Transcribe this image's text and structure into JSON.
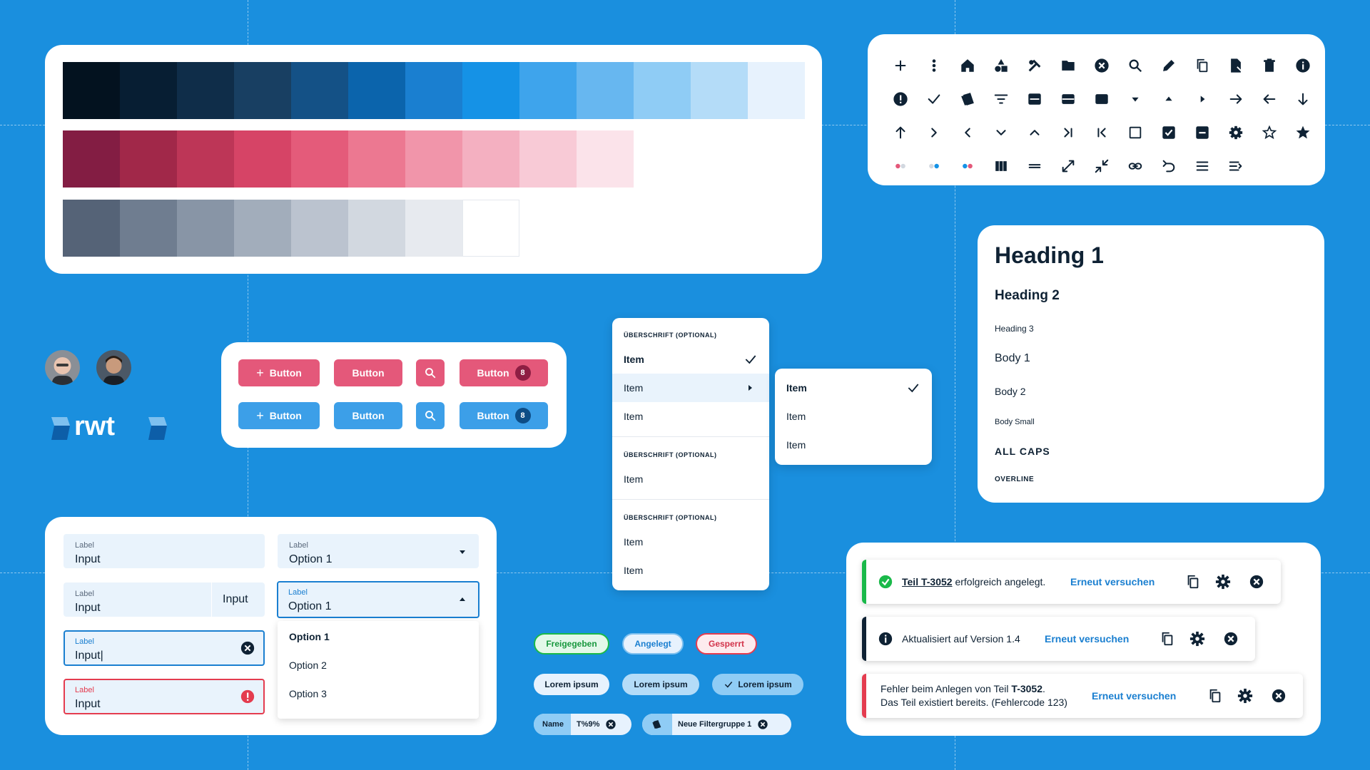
{
  "palette": {
    "blues": [
      "#03121f",
      "#071e33",
      "#0f2d49",
      "#183f62",
      "#145186",
      "#0b64ac",
      "#1a7fd0",
      "#1592e6",
      "#3ea4ec",
      "#67b7f0",
      "#8fccf5",
      "#b4dcf8",
      "#e7f2fd"
    ],
    "pinks": [
      "#831d43",
      "#a12849",
      "#bd3657",
      "#d64466",
      "#e45b7a",
      "#ec7891",
      "#f195aa",
      "#f4b0c1",
      "#f8cad6",
      "#fbe3ea"
    ],
    "grays": [
      "#556377",
      "#6f7d90",
      "#8895a6",
      "#a2adbb",
      "#bbc3cf",
      "#d2d8e0",
      "#e7eaef",
      "#ffffff"
    ]
  },
  "icons": [
    "plus-icon",
    "more-vertical-icon",
    "home-icon",
    "shapes-icon",
    "tools-icon",
    "folder-icon",
    "close-circle-icon",
    "search-icon",
    "pencil-icon",
    "copy-icon",
    "file-icon",
    "trash-icon",
    "info-icon",
    "alert-icon",
    "check-icon",
    "layers-icon",
    "filter-icon",
    "layout-top-icon",
    "layout-middle-icon",
    "layout-block-icon",
    "caret-down-icon",
    "caret-up-icon",
    "caret-right-icon",
    "arrow-right-icon",
    "arrow-left-icon",
    "arrow-down-icon",
    "arrow-up-icon",
    "chevron-right-icon",
    "chevron-left-icon",
    "chevron-down-icon",
    "chevron-up-icon",
    "skip-end-icon",
    "skip-start-icon",
    "checkbox-empty-icon",
    "checkbox-checked-icon",
    "checkbox-indeterminate-icon",
    "gear-icon",
    "star-outline-icon",
    "star-filled-icon",
    "dots-pink-icon",
    "dots-blue-icon",
    "dots-mixed-icon",
    "columns-icon",
    "equals-icon",
    "expand-icon",
    "collapse-icon",
    "link-icon",
    "undo-icon",
    "menu-icon",
    "menu-open-icon"
  ],
  "typography": {
    "h1": "Heading 1",
    "h2": "Heading 2",
    "h3": "Heading 3",
    "body1": "Body 1",
    "body2": "Body 2",
    "bodysmall": "Body Small",
    "allcaps": "ALL CAPS",
    "overline": "OVERLINE"
  },
  "brand": {
    "logo_text": "rwt"
  },
  "buttons": {
    "row1": [
      {
        "label": "Button",
        "icon": "plus-icon"
      },
      {
        "label": "Button"
      },
      {
        "icon": "search-icon"
      },
      {
        "label": "Button",
        "badge": "8"
      }
    ],
    "row2": [
      {
        "label": "Button",
        "icon": "plus-icon"
      },
      {
        "label": "Button"
      },
      {
        "icon": "search-icon"
      },
      {
        "label": "Button",
        "badge": "8"
      }
    ]
  },
  "form": {
    "f1": {
      "label": "Label",
      "value": "Input"
    },
    "f2": {
      "label": "Label",
      "value": "Input",
      "suffix": "Input"
    },
    "f3": {
      "label": "Label",
      "value": "Input|"
    },
    "f4": {
      "label": "Label",
      "value": "Input"
    },
    "s1": {
      "label": "Label",
      "value": "Option 1"
    },
    "s2": {
      "label": "Label",
      "value": "Option 1"
    },
    "options": [
      "Option 1",
      "Option 2",
      "Option 3"
    ]
  },
  "menu": {
    "heading": "ÜBERSCHRIFT (OPTIONAL)",
    "group1": [
      "Item",
      "Item",
      "Item"
    ],
    "group2": [
      "Item"
    ],
    "group3": [
      "Item",
      "Item"
    ],
    "submenu": [
      "Item",
      "Item",
      "Item"
    ]
  },
  "chips": {
    "status": [
      "Freigegeben",
      "Angelegt",
      "Gesperrt"
    ],
    "tags": [
      "Lorem ipsum",
      "Lorem ipsum",
      "Lorem ipsum"
    ],
    "filter1": {
      "name": "Name",
      "value": "T%9%"
    },
    "filter2": {
      "label": "Neue Filtergruppe 1"
    }
  },
  "toasts": [
    {
      "link": "Teil T-3052",
      "text": " erfolgreich angelegt.",
      "action": "Erneut versuchen",
      "color": "#1ab94a"
    },
    {
      "text": "Aktualisiert auf Version 1.4",
      "action": "Erneut versuchen",
      "color": "#0f2234"
    },
    {
      "text1": "Fehler beim Anlegen von Teil ",
      "bold": "T-3052",
      "text1b": ".",
      "text2": "Das Teil existiert bereits. (Fehlercode 123)",
      "action": "Erneut versuchen",
      "color": "#e43c4f"
    }
  ]
}
